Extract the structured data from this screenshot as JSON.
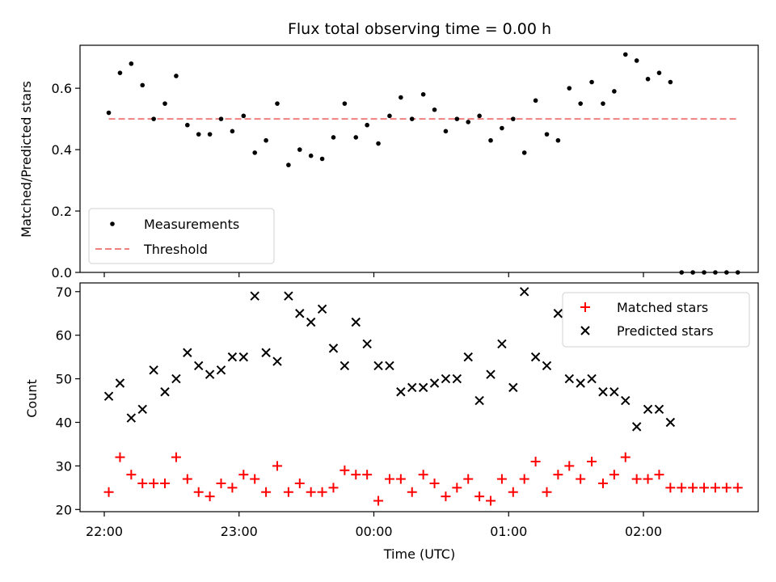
{
  "chart_data": [
    {
      "type": "scatter",
      "title": "Flux total observing time = 0.00 h",
      "xlabel": "",
      "ylabel": "Matched/Predicted stars",
      "ylim": [
        0,
        0.74
      ],
      "yticks": [
        "0.0",
        "0.2",
        "0.4",
        "0.6"
      ],
      "legend_position": "lower-left",
      "series": [
        {
          "name": "Measurements",
          "marker": "dot",
          "color": "#000000",
          "x": [
            "22:02",
            "22:07",
            "22:12",
            "22:17",
            "22:22",
            "22:27",
            "22:32",
            "22:37",
            "22:42",
            "22:47",
            "22:52",
            "22:57",
            "23:02",
            "23:07",
            "23:12",
            "23:17",
            "23:22",
            "23:27",
            "23:32",
            "23:37",
            "23:42",
            "23:47",
            "23:52",
            "23:57",
            "00:02",
            "00:07",
            "00:12",
            "00:17",
            "00:22",
            "00:27",
            "00:32",
            "00:37",
            "00:42",
            "00:47",
            "00:52",
            "00:57",
            "01:02",
            "01:07",
            "01:12",
            "01:17",
            "01:22",
            "01:27",
            "01:32",
            "01:37",
            "01:42",
            "01:47",
            "01:52",
            "01:57",
            "02:02",
            "02:07",
            "02:12",
            "02:17",
            "02:22",
            "02:27",
            "02:32",
            "02:37",
            "02:42"
          ],
          "y": [
            0.52,
            0.65,
            0.68,
            0.61,
            0.5,
            0.55,
            0.64,
            0.48,
            0.45,
            0.45,
            0.5,
            0.46,
            0.51,
            0.39,
            0.43,
            0.55,
            0.35,
            0.4,
            0.38,
            0.37,
            0.44,
            0.55,
            0.44,
            0.48,
            0.42,
            0.51,
            0.57,
            0.5,
            0.58,
            0.53,
            0.46,
            0.5,
            0.49,
            0.51,
            0.43,
            0.47,
            0.5,
            0.39,
            0.56,
            0.45,
            0.43,
            0.6,
            0.55,
            0.62,
            0.55,
            0.59,
            0.71,
            0.69,
            0.63,
            0.65,
            0.62,
            0.0,
            0.0,
            0.0,
            0.0,
            0.0,
            0.0
          ]
        },
        {
          "name": "Threshold",
          "style": "dashed",
          "color": "#f08080",
          "x": [
            "22:02",
            "02:42"
          ],
          "y": [
            0.5,
            0.5
          ]
        }
      ]
    },
    {
      "type": "scatter",
      "title": "",
      "xlabel": "Time (UTC)",
      "ylabel": "Count",
      "ylim": [
        19.5,
        72
      ],
      "yticks": [
        "20",
        "30",
        "40",
        "50",
        "60",
        "70"
      ],
      "xticks": [
        "22:00",
        "23:00",
        "00:00",
        "01:00",
        "02:00"
      ],
      "legend_position": "upper-right",
      "series": [
        {
          "name": "Matched stars",
          "marker": "plus",
          "color": "#ff0000",
          "x": [
            "22:02",
            "22:07",
            "22:12",
            "22:17",
            "22:22",
            "22:27",
            "22:32",
            "22:37",
            "22:42",
            "22:47",
            "22:52",
            "22:57",
            "23:02",
            "23:07",
            "23:12",
            "23:17",
            "23:22",
            "23:27",
            "23:32",
            "23:37",
            "23:42",
            "23:47",
            "23:52",
            "23:57",
            "00:02",
            "00:07",
            "00:12",
            "00:17",
            "00:22",
            "00:27",
            "00:32",
            "00:37",
            "00:42",
            "00:47",
            "00:52",
            "00:57",
            "01:02",
            "01:07",
            "01:12",
            "01:17",
            "01:22",
            "01:27",
            "01:32",
            "01:37",
            "01:42",
            "01:47",
            "01:52",
            "01:57",
            "02:02",
            "02:07",
            "02:12",
            "02:17",
            "02:22",
            "02:27",
            "02:32",
            "02:37",
            "02:42"
          ],
          "y": [
            24,
            32,
            28,
            26,
            26,
            26,
            32,
            27,
            24,
            23,
            26,
            25,
            28,
            27,
            24,
            30,
            24,
            26,
            24,
            24,
            25,
            29,
            28,
            28,
            22,
            27,
            27,
            24,
            28,
            26,
            23,
            25,
            27,
            23,
            22,
            27,
            24,
            27,
            31,
            24,
            28,
            30,
            27,
            31,
            26,
            28,
            32,
            27,
            27,
            28,
            25,
            25,
            25,
            25,
            25,
            25,
            25
          ]
        },
        {
          "name": "Predicted stars",
          "marker": "x",
          "color": "#000000",
          "x": [
            "22:02",
            "22:07",
            "22:12",
            "22:17",
            "22:22",
            "22:27",
            "22:32",
            "22:37",
            "22:42",
            "22:47",
            "22:52",
            "22:57",
            "23:02",
            "23:07",
            "23:12",
            "23:17",
            "23:22",
            "23:27",
            "23:32",
            "23:37",
            "23:42",
            "23:47",
            "23:52",
            "23:57",
            "00:02",
            "00:07",
            "00:12",
            "00:17",
            "00:22",
            "00:27",
            "00:32",
            "00:37",
            "00:42",
            "00:47",
            "00:52",
            "00:57",
            "01:02",
            "01:07",
            "01:12",
            "01:17",
            "01:22",
            "01:27",
            "01:32",
            "01:37",
            "01:42",
            "01:47",
            "01:52",
            "01:57",
            "02:02",
            "02:07",
            "02:12"
          ],
          "y": [
            46,
            49,
            41,
            43,
            52,
            47,
            50,
            56,
            53,
            51,
            52,
            55,
            55,
            69,
            56,
            54,
            69,
            65,
            63,
            66,
            57,
            53,
            63,
            58,
            53,
            53,
            47,
            48,
            48,
            49,
            50,
            50,
            55,
            45,
            51,
            58,
            48,
            70,
            55,
            53,
            65,
            50,
            49,
            50,
            47,
            47,
            45,
            39,
            43,
            43,
            40
          ]
        }
      ]
    }
  ]
}
